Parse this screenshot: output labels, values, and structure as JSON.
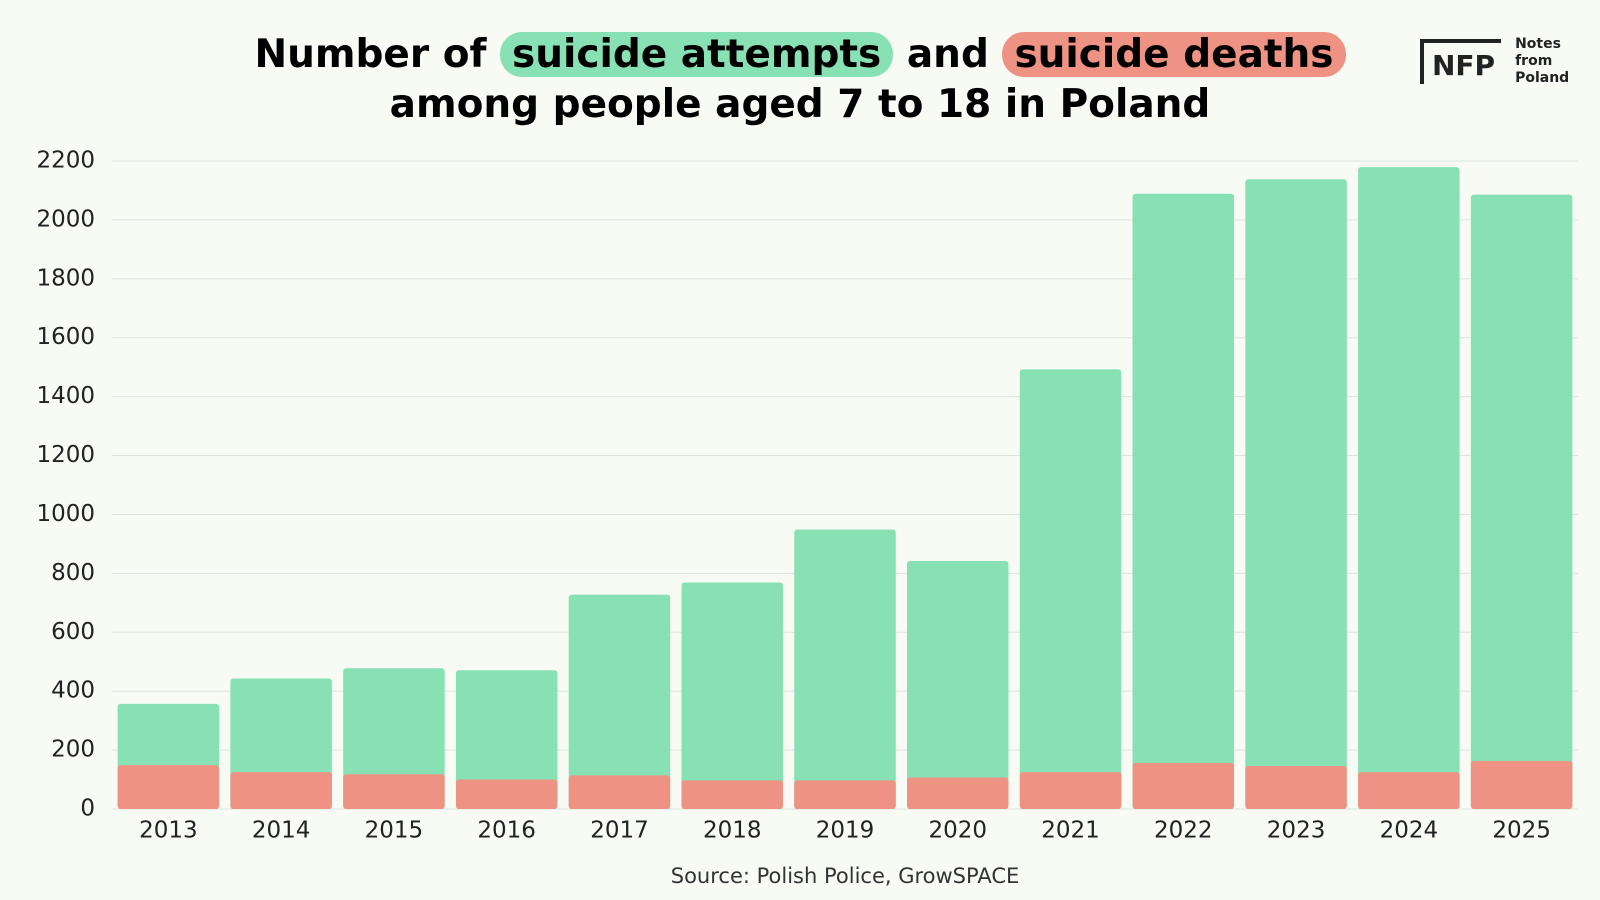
{
  "chart_data": {
    "type": "bar",
    "overlay": true,
    "title_parts": [
      "Number of",
      "and",
      "among people aged 7 to 18 in Poland"
    ],
    "source": "Source: Polish Police, GrowSPACE",
    "logo": {
      "mark": "NFP",
      "text": "Notes from Poland"
    },
    "categories": [
      "2013",
      "2014",
      "2015",
      "2016",
      "2017",
      "2018",
      "2019",
      "2020",
      "2021",
      "2022",
      "2023",
      "2024",
      "2025"
    ],
    "series": [
      {
        "name": "suicide attempts",
        "color": "#88e0b5",
        "values": [
          357,
          443,
          478,
          471,
          728,
          769,
          949,
          842,
          1493,
          2089,
          2138,
          2179,
          2086
        ]
      },
      {
        "name": "suicide deaths",
        "color": "#ee9283",
        "values": [
          149,
          125,
          118,
          100,
          114,
          97,
          97,
          107,
          125,
          156,
          146,
          125,
          163
        ]
      }
    ],
    "ylim": [
      0,
      2200
    ],
    "yticks": [
      0,
      200,
      400,
      600,
      800,
      1000,
      1200,
      1400,
      1600,
      1800,
      2000,
      2200
    ],
    "grid": true
  }
}
